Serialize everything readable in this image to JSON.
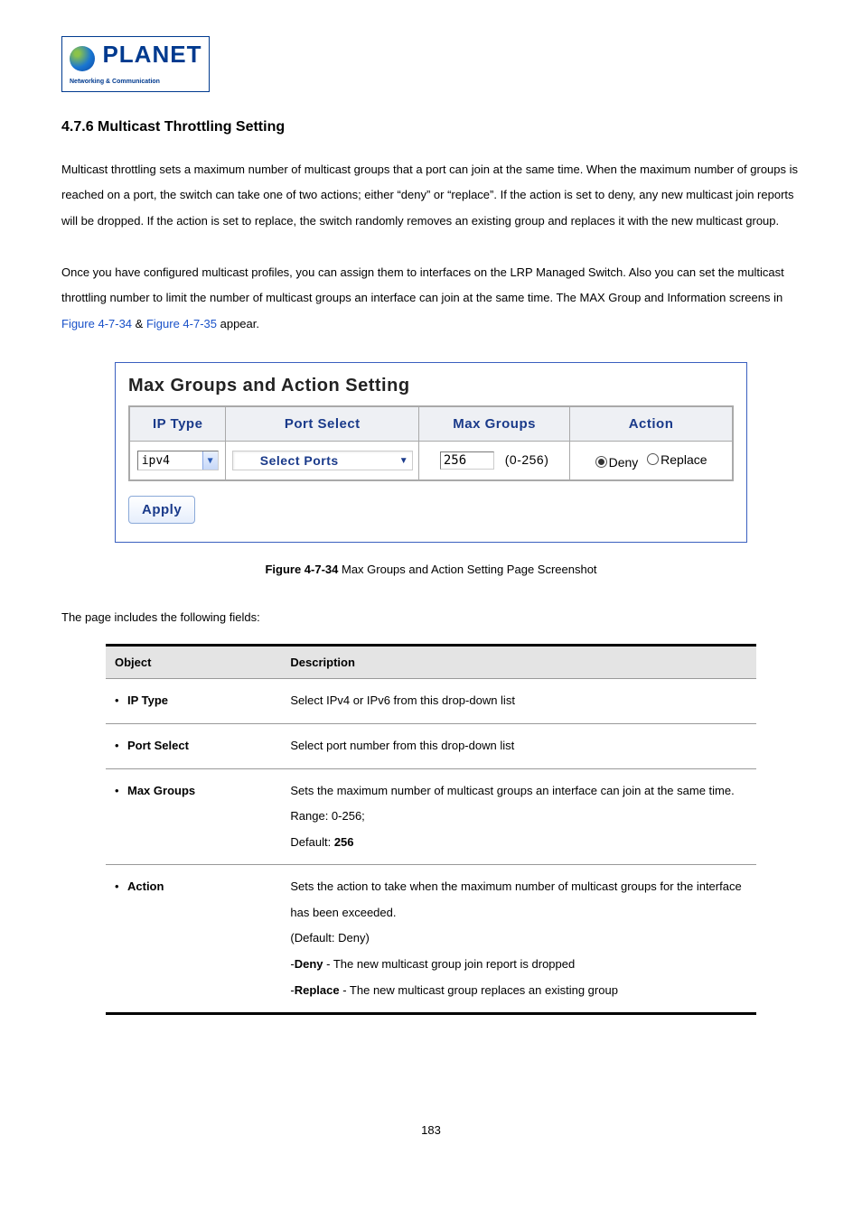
{
  "logo": {
    "brand": "PLANET",
    "tag": "Networking & Communication"
  },
  "heading": "4.7.6 Multicast Throttling Setting",
  "para1": "Multicast throttling sets a maximum number of multicast groups that a port can join at the same time. When the maximum number of groups is reached on a port, the switch can take one of two actions; either “deny” or “replace”. If the action is set to deny, any new multicast join reports will be dropped. If the action is set to replace, the switch randomly removes an existing group and replaces it with the new multicast group.",
  "para2_pre": "Once you have configured multicast profiles, you can assign them to interfaces on the LRP Managed Switch. Also you can set the multicast throttling number to limit the number of multicast groups an interface can join at the same time. The MAX Group and Information screens in ",
  "link1": "Figure 4-7-34",
  "para2_mid": " & ",
  "link2": "Figure 4-7-35",
  "para2_post": " appear.",
  "figure": {
    "title": "Max Groups and Action Setting",
    "headers": {
      "c1": "IP Type",
      "c2": "Port Select",
      "c3": "Max Groups",
      "c4": "Action"
    },
    "ip_value": "ipv4",
    "port_select_label": "Select Ports",
    "max_value": "256",
    "max_range": "(0-256)",
    "radio_deny": "Deny",
    "radio_replace": "Replace",
    "apply": "Apply"
  },
  "caption_bold": "Figure 4-7-34",
  "caption_rest": " Max Groups and Action Setting Page Screenshot",
  "fields_intro": "The page includes the following fields:",
  "table": {
    "h1": "Object",
    "h2": "Description",
    "rows": [
      {
        "obj": "IP Type",
        "desc": "Select IPv4 or IPv6 from this drop-down list"
      },
      {
        "obj": "Port Select",
        "desc": "Select port number from this drop-down list"
      },
      {
        "obj": "Max Groups",
        "desc_lines": [
          "Sets the maximum number of multicast groups an interface can join at the same time.",
          "Range: 0-256;"
        ],
        "default_prefix": "Default: ",
        "default_bold": "256"
      },
      {
        "obj": "Action",
        "action_lines": [
          "Sets the action to take when the maximum number of multicast groups for the interface has been exceeded.",
          "(Default: Deny)"
        ],
        "deny_prefix": "-",
        "deny_bold": "Deny",
        "deny_rest": " - The new multicast group join report is dropped",
        "replace_prefix": "-",
        "replace_bold": "Replace",
        "replace_rest": " - The new multicast group replaces an existing group"
      }
    ]
  },
  "page_number": "183"
}
